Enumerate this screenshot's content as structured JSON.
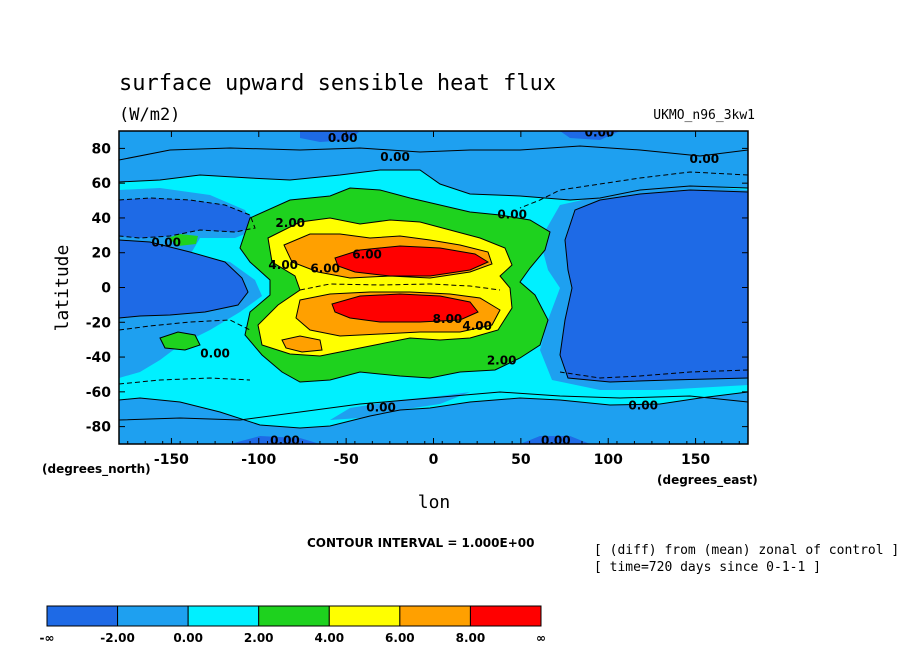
{
  "chart_data": {
    "type": "heatmap",
    "title": "surface upward sensible heat flux",
    "units": "(W/m2)",
    "dataset": "UKMO_n96_3kw1",
    "xlabel": "lon",
    "ylabel": "latitude",
    "x_units_label": "(degrees_east)",
    "y_units_label": "(degrees_north)",
    "xlim": [
      -180,
      180
    ],
    "ylim": [
      -90,
      90
    ],
    "x_ticks": [
      -150,
      -100,
      -50,
      0,
      50,
      100,
      150
    ],
    "y_ticks": [
      80,
      60,
      40,
      20,
      0,
      -20,
      -40,
      -60,
      -80
    ],
    "contour_interval_text": "CONTOUR INTERVAL = 1.000E+00",
    "notes": [
      "[ (diff) from (mean) zonal of control ]",
      "[ time=720 days since 0-1-1 ]"
    ],
    "colorbar": {
      "colors": [
        "#1e6ae6",
        "#1ea0f0",
        "#00f0ff",
        "#1ed21e",
        "#ffff00",
        "#ffa000",
        "#ff0000"
      ],
      "labels": [
        "-∞",
        "-2.00",
        "0.00",
        "2.00",
        "4.00",
        "6.00",
        "8.00",
        "∞"
      ]
    },
    "contour_labels": [
      {
        "text": "0.00",
        "lon": -52,
        "lat": 86
      },
      {
        "text": "0.00",
        "lon": -22,
        "lat": 75
      },
      {
        "text": "0.00",
        "lon": 95,
        "lat": 89
      },
      {
        "text": "0.00",
        "lon": 155,
        "lat": 74
      },
      {
        "text": "0.00",
        "lon": 45,
        "lat": 42
      },
      {
        "text": "0.00",
        "lon": -153,
        "lat": 26
      },
      {
        "text": "0.00",
        "lon": -125,
        "lat": -38
      },
      {
        "text": "0.00",
        "lon": -30,
        "lat": -69
      },
      {
        "text": "0.00",
        "lon": 120,
        "lat": -68
      },
      {
        "text": "0.00",
        "lon": -85,
        "lat": -88
      },
      {
        "text": "0.00",
        "lon": 70,
        "lat": -88
      },
      {
        "text": "2.00",
        "lon": -82,
        "lat": 37
      },
      {
        "text": "2.00",
        "lon": 39,
        "lat": -42
      },
      {
        "text": "4.00",
        "lon": -86,
        "lat": 13
      },
      {
        "text": "6.00",
        "lon": -62,
        "lat": 11
      },
      {
        "text": "6.00",
        "lon": -38,
        "lat": 19
      },
      {
        "text": "8.00",
        "lon": 8,
        "lat": -18
      },
      {
        "text": "4.00",
        "lon": 25,
        "lat": -22
      }
    ],
    "zones": [
      {
        "level": "-inf..-2",
        "color": "#1e6ae6",
        "description": "SE Pacific / Americas (lon 80-180, lat -60..60), NE Pacific (lon -180..-140, lat -30..30)"
      },
      {
        "level": "-2..0",
        "color": "#1ea0f0",
        "description": "Polar bands and surrounding subtropical waters"
      },
      {
        "level": "0..2",
        "color": "#00f0ff",
        "description": "Mid-latitude belts"
      },
      {
        "level": "2..4",
        "color": "#1ed21e",
        "description": "Africa / Atlantic region lon -90..60, lat -50..50"
      },
      {
        "level": "4..6",
        "color": "#ffff00",
        "description": "Inner band lon -80..40, lat -40..35"
      },
      {
        "level": "6..8",
        "color": "#ffa000",
        "description": "Lobes lon -70..30 near lat +-18"
      },
      {
        "level": ">8",
        "color": "#ff0000",
        "description": "Cores centred near lat +15 and -15, lon -45..30"
      }
    ]
  }
}
